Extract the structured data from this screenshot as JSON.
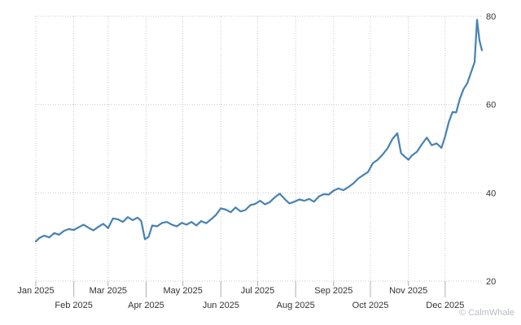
{
  "watermark": "© CalmWhale",
  "chart_data": {
    "type": "line",
    "title": "",
    "xlabel": "",
    "ylabel": "",
    "ylim": [
      20,
      80
    ],
    "yticks": [
      20,
      40,
      60,
      80
    ],
    "y_axis_side": "right",
    "grid": "dotted vertical and horizontal",
    "legend": "none",
    "x_tick_labels": [
      {
        "date": "2025-01-01",
        "label": "Jan 2025"
      },
      {
        "date": "2025-02-01",
        "label": "Feb 2025"
      },
      {
        "date": "2025-03-01",
        "label": "Mar 2025"
      },
      {
        "date": "2025-04-01",
        "label": "Apr 2025"
      },
      {
        "date": "2025-05-01",
        "label": "May 2025"
      },
      {
        "date": "2025-06-01",
        "label": "Jun 2025"
      },
      {
        "date": "2025-07-01",
        "label": "Jul 2025"
      },
      {
        "date": "2025-08-01",
        "label": "Aug 2025"
      },
      {
        "date": "2025-09-01",
        "label": "Sep 2025"
      },
      {
        "date": "2025-10-01",
        "label": "Oct 2025"
      },
      {
        "date": "2025-11-01",
        "label": "Nov 2025"
      },
      {
        "date": "2025-12-01",
        "label": "Dec 2025"
      }
    ],
    "series": [
      {
        "color": "#4682b4",
        "x": [
          "2025-01-01",
          "2025-01-04",
          "2025-01-08",
          "2025-01-12",
          "2025-01-16",
          "2025-01-20",
          "2025-01-24",
          "2025-01-28",
          "2025-02-01",
          "2025-02-05",
          "2025-02-09",
          "2025-02-13",
          "2025-02-17",
          "2025-02-21",
          "2025-02-25",
          "2025-03-01",
          "2025-03-05",
          "2025-03-09",
          "2025-03-13",
          "2025-03-17",
          "2025-03-21",
          "2025-03-25",
          "2025-03-28",
          "2025-03-31",
          "2025-04-03",
          "2025-04-06",
          "2025-04-10",
          "2025-04-14",
          "2025-04-18",
          "2025-04-22",
          "2025-04-26",
          "2025-04-30",
          "2025-05-04",
          "2025-05-08",
          "2025-05-12",
          "2025-05-16",
          "2025-05-20",
          "2025-05-24",
          "2025-05-28",
          "2025-06-01",
          "2025-06-05",
          "2025-06-09",
          "2025-06-13",
          "2025-06-17",
          "2025-06-21",
          "2025-06-25",
          "2025-06-29",
          "2025-07-03",
          "2025-07-07",
          "2025-07-11",
          "2025-07-15",
          "2025-07-19",
          "2025-07-23",
          "2025-07-27",
          "2025-07-31",
          "2025-08-04",
          "2025-08-08",
          "2025-08-12",
          "2025-08-16",
          "2025-08-20",
          "2025-08-24",
          "2025-08-28",
          "2025-09-01",
          "2025-09-05",
          "2025-09-09",
          "2025-09-13",
          "2025-09-17",
          "2025-09-21",
          "2025-09-25",
          "2025-09-29",
          "2025-10-03",
          "2025-10-07",
          "2025-10-11",
          "2025-10-15",
          "2025-10-19",
          "2025-10-23",
          "2025-10-26",
          "2025-10-29",
          "2025-11-01",
          "2025-11-04",
          "2025-11-08",
          "2025-11-12",
          "2025-11-16",
          "2025-11-20",
          "2025-11-24",
          "2025-11-28",
          "2025-12-01",
          "2025-12-04",
          "2025-12-07",
          "2025-12-10",
          "2025-12-13",
          "2025-12-16",
          "2025-12-19",
          "2025-12-22",
          "2025-12-25",
          "2025-12-27",
          "2025-12-29",
          "2025-12-31"
        ],
        "values": [
          29,
          29.8,
          30.3,
          29.9,
          30.9,
          30.5,
          31.4,
          31.8,
          31.6,
          32.2,
          32.8,
          32.1,
          31.5,
          32.3,
          33,
          32,
          34.2,
          34,
          33.4,
          34.5,
          33.8,
          34.4,
          33.6,
          29.5,
          30,
          32.6,
          32.4,
          33.2,
          33.4,
          32.8,
          32.4,
          33.2,
          32.8,
          33.4,
          32.6,
          33.6,
          33.1,
          34,
          35,
          36.5,
          36.2,
          35.6,
          36.7,
          35.8,
          36.1,
          37.2,
          37.5,
          38.2,
          37.4,
          37.9,
          39,
          39.8,
          38.6,
          37.6,
          38,
          38.5,
          38.2,
          38.6,
          38,
          39.2,
          39.7,
          39.6,
          40.5,
          41,
          40.6,
          41.3,
          42.1,
          43.2,
          44,
          44.7,
          46.7,
          47.5,
          48.7,
          50.1,
          52.2,
          53.5,
          49,
          48.2,
          47.5,
          48.5,
          49.3,
          51,
          52.5,
          50.8,
          51.2,
          50.2,
          52.8,
          56.1,
          58.3,
          58.2,
          61.3,
          63.5,
          64.8,
          67.2,
          69.6,
          79.2,
          74.5,
          72.3
        ]
      }
    ]
  }
}
